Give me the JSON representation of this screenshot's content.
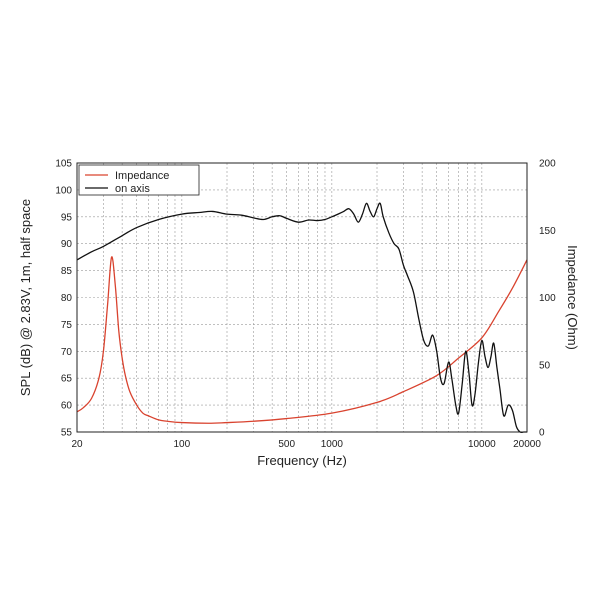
{
  "chart_data": {
    "type": "line",
    "xlabel": "Frequency (Hz)",
    "ylabel": "SPL (dB) @ 2.83V, 1m, half space",
    "y2label": "Impedance (Ohm)",
    "xscale": "log",
    "xlim": [
      20,
      20000
    ],
    "ylim": [
      55,
      105
    ],
    "y2lim": [
      0,
      200
    ],
    "grid": true,
    "legend_position": "top-left",
    "x_ticks": [
      "20",
      "100",
      "500",
      "1000",
      "10000",
      "20000"
    ],
    "y_ticks": [
      "55",
      "60",
      "65",
      "70",
      "75",
      "80",
      "85",
      "90",
      "95",
      "100",
      "105"
    ],
    "y2_ticks": [
      "0",
      "50",
      "100",
      "150",
      "200"
    ],
    "series": [
      {
        "name": "Impedance",
        "axis": "right",
        "color": "#d9432f",
        "x": [
          20,
          22,
          25,
          28,
          30,
          32,
          34,
          36,
          38,
          40,
          42,
          45,
          50,
          55,
          60,
          70,
          80,
          100,
          150,
          200,
          300,
          500,
          1000,
          2000,
          3000,
          5000,
          7000,
          10000,
          13000,
          16000,
          20000
        ],
        "y": [
          15,
          18,
          25,
          40,
          60,
          95,
          130,
          109,
          75,
          55,
          42,
          30,
          20,
          14,
          12,
          9,
          8,
          7,
          6.5,
          7,
          8,
          10,
          14,
          22,
          30,
          42,
          55,
          70,
          90,
          107,
          128
        ]
      },
      {
        "name": "on axis",
        "axis": "left",
        "color": "#111111",
        "x": [
          20,
          25,
          30,
          40,
          50,
          70,
          100,
          130,
          160,
          200,
          250,
          300,
          350,
          400,
          450,
          500,
          600,
          700,
          800,
          900,
          1000,
          1100,
          1200,
          1300,
          1400,
          1500,
          1600,
          1700,
          1800,
          1900,
          2000,
          2100,
          2200,
          2400,
          2600,
          2800,
          3000,
          3200,
          3500,
          3800,
          4100,
          4400,
          4700,
          5000,
          5300,
          5600,
          6000,
          6300,
          6700,
          7000,
          7400,
          7800,
          8200,
          8600,
          9000,
          9500,
          10000,
          10500,
          11000,
          11500,
          12000,
          12600,
          13200,
          14000,
          15000,
          16000,
          17000,
          18000,
          19000,
          20000
        ],
        "y": [
          87,
          88.5,
          89.5,
          91.5,
          93,
          94.5,
          95.5,
          95.8,
          96,
          95.5,
          95.3,
          94.8,
          94.5,
          95,
          95.2,
          94.7,
          94,
          94.4,
          94.3,
          94.5,
          95,
          95.5,
          96,
          96.5,
          95.5,
          94,
          95.5,
          97.5,
          96,
          95,
          96.5,
          97.5,
          95,
          92,
          90,
          89,
          86,
          84,
          81,
          76,
          72,
          71,
          73,
          70,
          65,
          64,
          68,
          65,
          60,
          58.5,
          64,
          70,
          66,
          60,
          62,
          68,
          72,
          69,
          67,
          69,
          71.5,
          67,
          63,
          58,
          60,
          59,
          56,
          55,
          55,
          55
        ]
      }
    ]
  }
}
